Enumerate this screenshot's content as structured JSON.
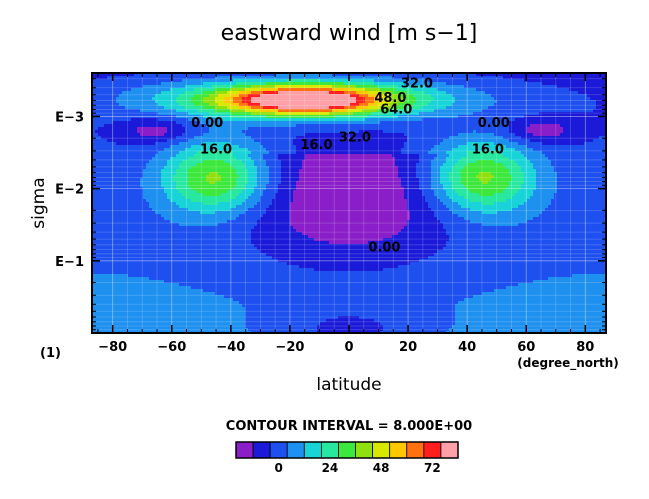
{
  "chart_data": {
    "type": "contour",
    "title": "eastward wind [m s−1]",
    "xlabel": "latitude",
    "x_units": "(degree_north)",
    "ylabel": "sigma",
    "panel_label": "(1)",
    "x_ticks": [
      "−80",
      "−60",
      "−40",
      "−20",
      "0",
      "20",
      "40",
      "60",
      "80"
    ],
    "x_range": [
      -87,
      87
    ],
    "y_ticks": [
      "E−3",
      "E−2",
      "E−1"
    ],
    "y_scale": "log",
    "y_range": [
      1,
      0.00025
    ],
    "contour_interval_text": "CONTOUR INTERVAL = 8.000E+00",
    "contour_labels": [
      {
        "text": "32.0",
        "value": 32
      },
      {
        "text": "48.0",
        "value": 48
      },
      {
        "text": "64.0",
        "value": 64
      },
      {
        "text": "0.00",
        "value": 0
      },
      {
        "text": "16.0",
        "value": 16
      },
      {
        "text": "32.0",
        "value": 32
      },
      {
        "text": "0.00",
        "value": 0
      },
      {
        "text": "16.0",
        "value": 16
      },
      {
        "text": "16.0",
        "value": 16
      },
      {
        "text": "0.00",
        "value": 0
      }
    ],
    "colorbar": {
      "levels": [
        -16,
        -8,
        0,
        8,
        16,
        24,
        32,
        40,
        48,
        56,
        64,
        72,
        80
      ],
      "tick_labels": [
        "0",
        "24",
        "48",
        "72"
      ],
      "colors": [
        "#8a1ec8",
        "#1a1ad8",
        "#1e50f0",
        "#1e90f0",
        "#18d4d8",
        "#28e8a0",
        "#3ce83c",
        "#90e010",
        "#d8e800",
        "#ffc800",
        "#ff7010",
        "#ff1e1e",
        "#ffa0a8"
      ]
    },
    "jets": [
      {
        "lat": -45,
        "sigma": 0.007,
        "max": 40
      },
      {
        "lat": 45,
        "sigma": 0.007,
        "max": 40
      },
      {
        "lat": -15,
        "sigma": 0.0006,
        "max": 72
      }
    ],
    "grid": true
  }
}
